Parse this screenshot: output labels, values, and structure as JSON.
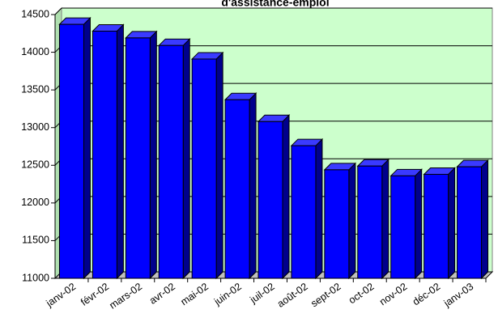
{
  "chart_data": {
    "type": "bar",
    "title": "d'assistance-emploi",
    "xlabel": "",
    "ylabel": "",
    "categories": [
      "janv-02",
      "févr-02",
      "mars-02",
      "avr-02",
      "mai-02",
      "juin-02",
      "juil-02",
      "août-02",
      "sept-02",
      "oct-02",
      "nov-02",
      "déc-02",
      "janv-03"
    ],
    "values": [
      14370,
      14280,
      14190,
      14090,
      13910,
      13370,
      13080,
      12760,
      12440,
      12490,
      12360,
      12380,
      12480
    ],
    "ylim": [
      11000,
      14500
    ],
    "yticks": [
      11000,
      11500,
      12000,
      12500,
      13000,
      13500,
      14000,
      14500
    ],
    "grid": true,
    "legend": "none",
    "colors": {
      "bar_front": "#0000ff",
      "bar_side": "#00008c",
      "bar_top": "#3a3aff",
      "plot_background": "#ccffcc",
      "floor": "#c0c0c0",
      "gridline": "#000000"
    }
  }
}
